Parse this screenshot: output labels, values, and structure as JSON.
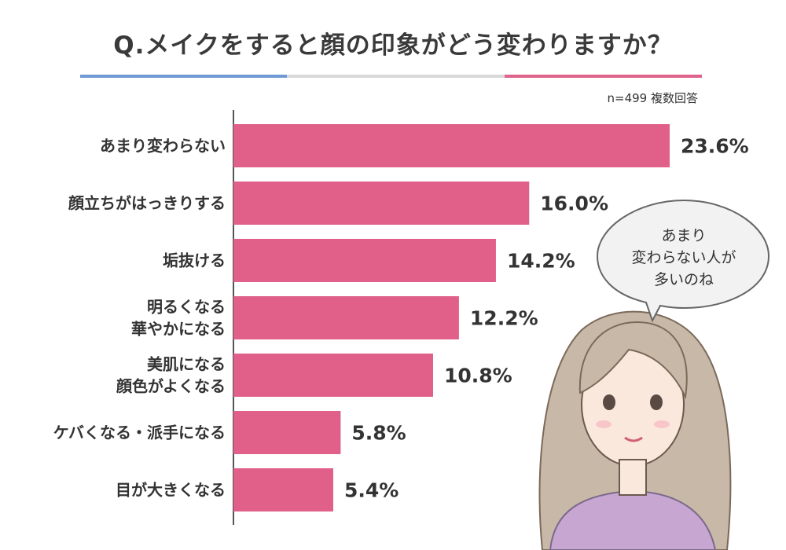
{
  "title": "Q.メイクをすると顔の印象がどう変わりますか？",
  "sample_note": "n=499  複数回答",
  "speech_bubble": "あまり\n変わらない人が\n多いのね",
  "colors": {
    "bar": "#e0608a",
    "accent_blue": "#6f9ad6",
    "accent_pink": "#e0638b",
    "axis": "#555555"
  },
  "chart_data": {
    "type": "bar",
    "orientation": "horizontal",
    "categories": [
      [
        "あまり変わらない"
      ],
      [
        "顔立ちがはっきりする"
      ],
      [
        "垢抜ける"
      ],
      [
        "明るくなる",
        "華やかになる"
      ],
      [
        "美肌になる",
        "顔色がよくなる"
      ],
      [
        "ケバくなる・派手になる"
      ],
      [
        "目が大きくなる"
      ]
    ],
    "values": [
      23.6,
      16.0,
      14.2,
      12.2,
      10.8,
      5.8,
      5.4
    ],
    "value_labels": [
      "23.6%",
      "16.0%",
      "14.2%",
      "12.2%",
      "10.8%",
      "5.8%",
      "5.4%"
    ],
    "unit": "%",
    "xlim": [
      0,
      23.6
    ],
    "grid": false
  }
}
